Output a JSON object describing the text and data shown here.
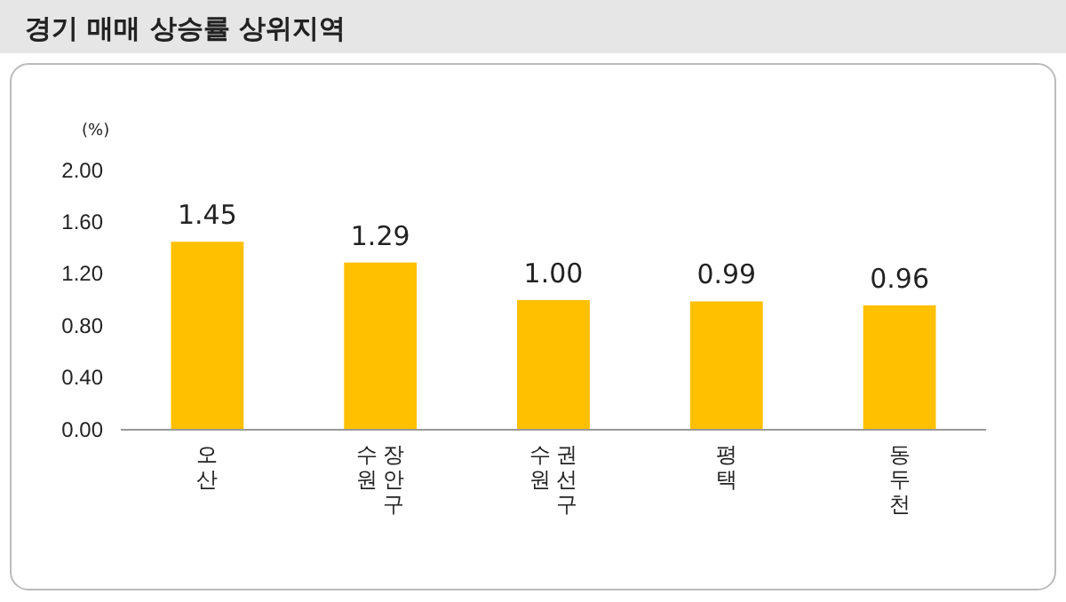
{
  "chart_data": {
    "type": "bar",
    "title": "경기 매매 상승률 상위지역",
    "ylabel": "(%)",
    "categories": [
      "오산",
      "수원 장안구",
      "수원 권선구",
      "평택",
      "동두천"
    ],
    "values": [
      1.45,
      1.29,
      1.0,
      0.99,
      0.96
    ],
    "value_labels": [
      "1.45",
      "1.29",
      "1.00",
      "0.99",
      "0.96"
    ],
    "color": "#ffc000",
    "ylim": [
      0,
      2
    ],
    "yticks": [
      {
        "value": 0,
        "label": "0.00"
      },
      {
        "value": 0.4,
        "label": "0.40"
      },
      {
        "value": 0.8,
        "label": "0.80"
      },
      {
        "value": 1.2,
        "label": "1.20"
      },
      {
        "value": 1.6,
        "label": "1.60"
      },
      {
        "value": 2,
        "label": "2.00"
      }
    ],
    "grid": false
  }
}
